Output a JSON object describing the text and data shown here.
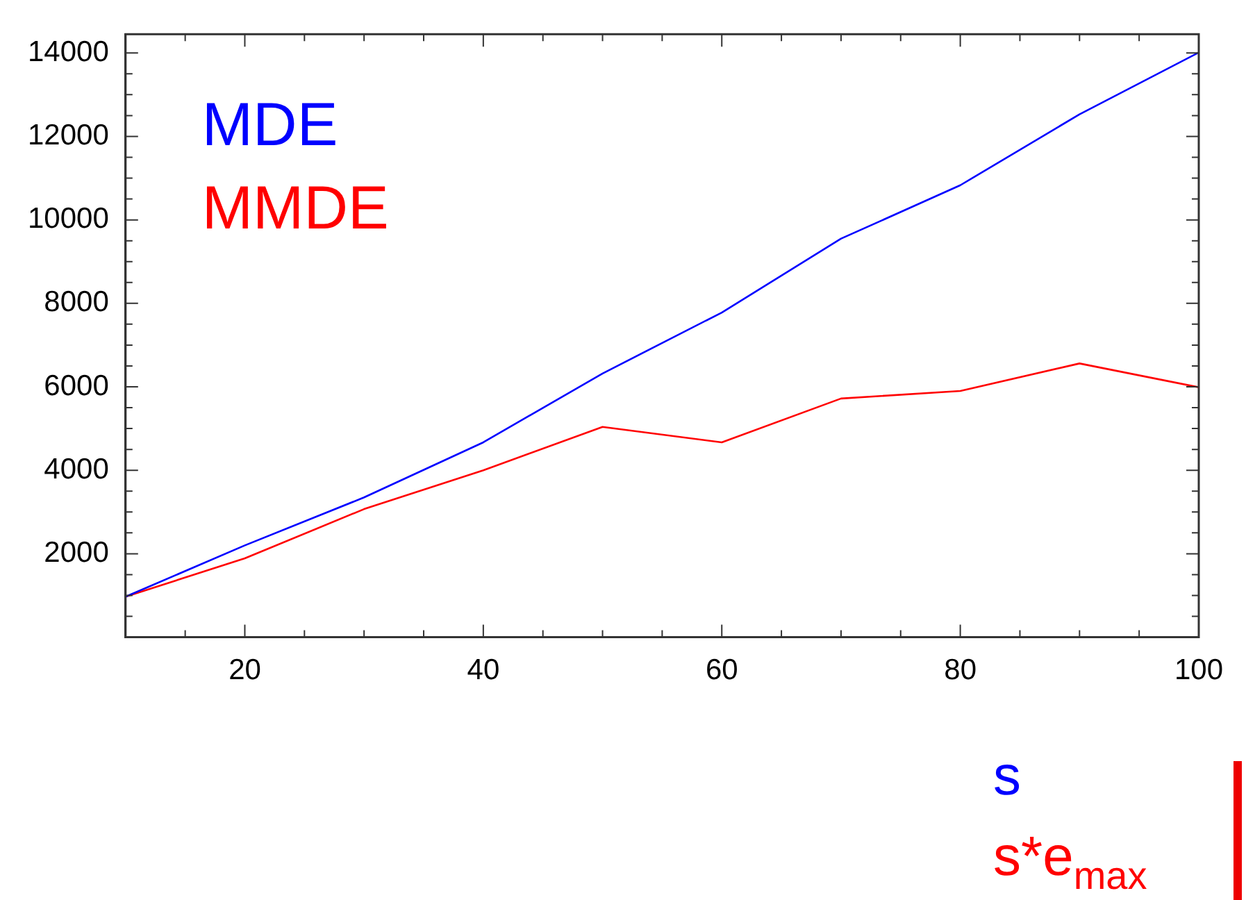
{
  "chart_data": {
    "type": "line",
    "x": [
      10,
      20,
      30,
      40,
      50,
      60,
      70,
      80,
      90,
      100
    ],
    "series": [
      {
        "name": "MDE",
        "color": "#0000ff",
        "values": [
          970,
          2200,
          3350,
          4670,
          6320,
          7780,
          9550,
          10830,
          12530,
          14010
        ]
      },
      {
        "name": "MMDE",
        "color": "#ff0000",
        "values": [
          970,
          1890,
          3070,
          4000,
          5040,
          4670,
          5720,
          5900,
          6560,
          5990
        ]
      }
    ],
    "xlim": [
      10,
      100
    ],
    "ylim": [
      0,
      14450
    ],
    "xticks": [
      {
        "value": 15,
        "label": null
      },
      20,
      {
        "value": 25,
        "label": null
      },
      {
        "value": 30,
        "label": null
      },
      {
        "value": 35,
        "label": null
      },
      40,
      {
        "value": 45,
        "label": null
      },
      {
        "value": 50,
        "label": null
      },
      {
        "value": 55,
        "label": null
      },
      60,
      {
        "value": 65,
        "label": null
      },
      {
        "value": 70,
        "label": null
      },
      {
        "value": 75,
        "label": null
      },
      80,
      {
        "value": 85,
        "label": null
      },
      {
        "value": 90,
        "label": null
      },
      {
        "value": 95,
        "label": null
      },
      100
    ],
    "yticks": [
      {
        "value": 500,
        "label": null
      },
      {
        "value": 1000,
        "label": null
      },
      {
        "value": 1500,
        "label": null
      },
      2000,
      {
        "value": 2500,
        "label": null
      },
      {
        "value": 3000,
        "label": null
      },
      {
        "value": 3500,
        "label": null
      },
      4000,
      {
        "value": 4500,
        "label": null
      },
      {
        "value": 5000,
        "label": null
      },
      {
        "value": 5500,
        "label": null
      },
      6000,
      {
        "value": 6500,
        "label": null
      },
      {
        "value": 7000,
        "label": null
      },
      {
        "value": 7500,
        "label": null
      },
      8000,
      {
        "value": 8500,
        "label": null
      },
      {
        "value": 9000,
        "label": null
      },
      {
        "value": 9500,
        "label": null
      },
      10000,
      {
        "value": 10500,
        "label": null
      },
      {
        "value": 11000,
        "label": null
      },
      {
        "value": 11500,
        "label": null
      },
      12000,
      {
        "value": 12500,
        "label": null
      },
      {
        "value": 13000,
        "label": null
      },
      {
        "value": 13500,
        "label": null
      },
      14000
    ],
    "annotations": [
      "s",
      "s*e$_{max}$"
    ],
    "legend": "top left",
    "grid": false,
    "marker": "none",
    "line_style": "solid"
  }
}
